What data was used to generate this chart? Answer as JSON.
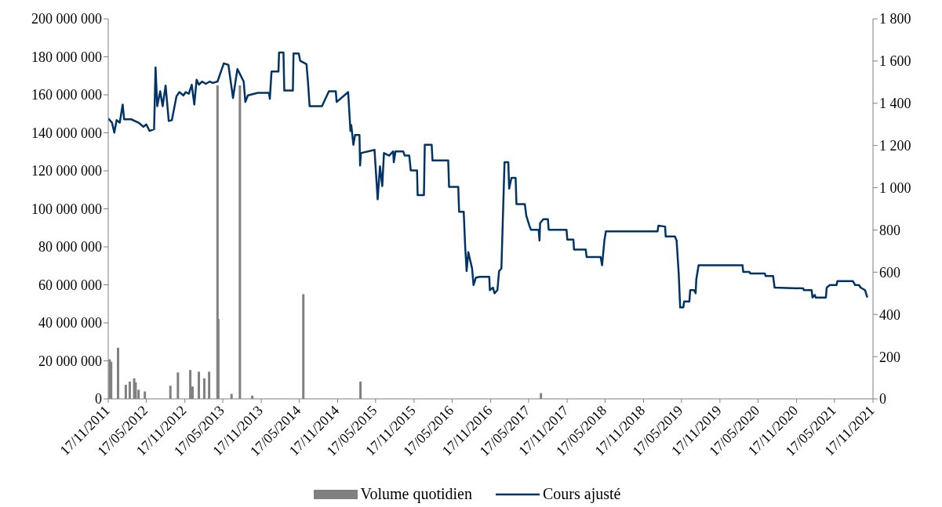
{
  "chart_data": {
    "type": "line",
    "legend": "bottom",
    "xlim": [
      "2011-11-17",
      "2021-11-17"
    ],
    "xticks": [
      {
        "value": "2011-11-17",
        "label": "17/11/2011"
      },
      {
        "value": "2012-05-17",
        "label": "17/05/2012"
      },
      {
        "value": "2012-11-17",
        "label": "17/11/2012"
      },
      {
        "value": "2013-05-17",
        "label": "17/05/2013"
      },
      {
        "value": "2013-11-17",
        "label": "17/11/2013"
      },
      {
        "value": "2014-05-17",
        "label": "17/05/2014"
      },
      {
        "value": "2014-11-17",
        "label": "17/11/2014"
      },
      {
        "value": "2015-05-17",
        "label": "17/05/2015"
      },
      {
        "value": "2015-11-17",
        "label": "17/11/2015"
      },
      {
        "value": "2016-05-17",
        "label": "17/05/2016"
      },
      {
        "value": "2016-11-17",
        "label": "17/11/2016"
      },
      {
        "value": "2017-05-17",
        "label": "17/05/2017"
      },
      {
        "value": "2017-11-17",
        "label": "17/11/2017"
      },
      {
        "value": "2018-05-17",
        "label": "17/05/2018"
      },
      {
        "value": "2018-11-17",
        "label": "17/11/2018"
      },
      {
        "value": "2019-05-17",
        "label": "17/05/2019"
      },
      {
        "value": "2019-11-17",
        "label": "17/11/2019"
      },
      {
        "value": "2020-05-17",
        "label": "17/05/2020"
      },
      {
        "value": "2020-11-17",
        "label": "17/11/2020"
      },
      {
        "value": "2021-05-17",
        "label": "17/05/2021"
      },
      {
        "value": "2021-11-17",
        "label": "17/11/2021"
      }
    ],
    "ylim": [
      0,
      200000000
    ],
    "yticks": [
      0,
      {
        "value": 20000000,
        "label": "20 000 000"
      },
      {
        "value": 40000000,
        "label": "40 000 000"
      },
      {
        "value": 60000000,
        "label": "60 000 000"
      },
      {
        "value": 80000000,
        "label": "80 000 000"
      },
      {
        "value": 100000000,
        "label": "100 000 000"
      },
      {
        "value": 120000000,
        "label": "120 000 000"
      },
      {
        "value": 140000000,
        "label": "140 000 000"
      },
      {
        "value": 160000000,
        "label": "160 000 000"
      },
      {
        "value": 180000000,
        "label": "180 000 000"
      },
      {
        "value": 200000000,
        "label": "200 000 000"
      }
    ],
    "y2lim": [
      0,
      1800
    ],
    "y2ticks": [
      0,
      200,
      400,
      600,
      800,
      {
        "value": 1000,
        "label": "1 000"
      },
      {
        "value": 1200,
        "label": "1 200"
      },
      {
        "value": 1400,
        "label": "1 400"
      },
      {
        "value": 1600,
        "label": "1 600"
      },
      {
        "value": 1800,
        "label": "1 800"
      }
    ],
    "series": [
      {
        "name": "Volume quotidien",
        "type": "bar",
        "color": "#808080",
        "x": [
          "2011-11-24",
          "2011-12-01",
          "2012-01-03",
          "2012-02-09",
          "2012-02-28",
          "2012-03-20",
          "2012-03-27",
          "2012-04-10",
          "2012-05-10",
          "2012-09-09",
          "2012-10-15",
          "2012-12-13",
          "2012-12-24",
          "2013-01-23",
          "2013-02-18",
          "2013-03-13",
          "2013-04-22",
          "2013-04-26",
          "2013-06-28",
          "2013-08-07",
          "2013-10-05",
          "2014-06-06",
          "2015-03-06",
          "2017-07-15"
        ],
        "values": [
          20800000,
          19500000,
          26900000,
          7400000,
          9100000,
          10800000,
          8700000,
          4800000,
          3900000,
          6900000,
          13900000,
          15200000,
          6500000,
          14300000,
          10800000,
          14300000,
          165000000,
          42000000,
          2600000,
          165000000,
          1700000,
          55100000,
          9100000,
          3000000
        ]
      },
      {
        "name": "Cours ajusté",
        "axis": "y2",
        "color": "#003366",
        "marker": "none",
        "line_style": "solid",
        "x": [
          "2011-11-17",
          "2011-12-05",
          "2011-12-16",
          "2011-12-27",
          "2012-01-11",
          "2012-01-25",
          "2012-02-01",
          "2012-03-06",
          "2012-04-10",
          "2012-05-03",
          "2012-05-17",
          "2012-06-01",
          "2012-06-23",
          "2012-06-30",
          "2012-07-08",
          "2012-07-22",
          "2012-08-03",
          "2012-08-17",
          "2012-09-01",
          "2012-09-16",
          "2012-10-08",
          "2012-10-22",
          "2012-11-10",
          "2012-11-21",
          "2012-12-06",
          "2012-12-20",
          "2013-01-01",
          "2013-01-12",
          "2013-01-23",
          "2013-02-07",
          "2013-02-25",
          "2013-03-16",
          "2013-03-31",
          "2013-04-22",
          "2013-05-22",
          "2013-06-13",
          "2013-06-24",
          "2013-07-05",
          "2013-07-26",
          "2013-08-25",
          "2013-09-02",
          "2013-09-14",
          "2013-10-31",
          "2013-12-24",
          "2013-12-28",
          "2014-01-05",
          "2014-02-07",
          "2014-02-10",
          "2014-03-03",
          "2014-03-07",
          "2014-04-17",
          "2014-04-20",
          "2014-05-15",
          "2014-05-22",
          "2014-06-21",
          "2014-06-28",
          "2014-07-06",
          "2014-09-03",
          "2014-10-06",
          "2014-11-08",
          "2014-11-12",
          "2015-01-06",
          "2015-01-17",
          "2015-01-21",
          "2015-01-31",
          "2015-02-08",
          "2015-03-01",
          "2015-03-04",
          "2015-03-08",
          "2015-05-12",
          "2015-05-27",
          "2015-06-07",
          "2015-06-18",
          "2015-06-26",
          "2015-07-21",
          "2015-08-09",
          "2015-08-12",
          "2015-08-20",
          "2015-09-26",
          "2015-10-03",
          "2015-10-25",
          "2015-11-01",
          "2015-12-01",
          "2015-12-04",
          "2016-01-03",
          "2016-01-07",
          "2016-02-09",
          "2016-02-13",
          "2016-04-28",
          "2016-05-02",
          "2016-06-15",
          "2016-06-19",
          "2016-07-11",
          "2016-07-18",
          "2016-07-25",
          "2016-08-02",
          "2016-08-20",
          "2016-08-27",
          "2016-09-07",
          "2016-09-26",
          "2016-11-10",
          "2016-11-13",
          "2016-11-28",
          "2016-12-05",
          "2016-12-19",
          "2016-12-27",
          "2017-01-07",
          "2017-01-22",
          "2017-02-09",
          "2017-02-13",
          "2017-02-24",
          "2017-03-16",
          "2017-03-20",
          "2017-04-29",
          "2017-05-06",
          "2017-05-21",
          "2017-05-28",
          "2017-07-04",
          "2017-07-08",
          "2017-07-11",
          "2017-07-26",
          "2017-08-17",
          "2017-08-21",
          "2017-11-14",
          "2017-11-18",
          "2017-12-17",
          "2017-12-20",
          "2018-02-14",
          "2018-02-18",
          "2018-04-26",
          "2018-05-03",
          "2018-05-14",
          "2018-05-21",
          "2019-01-23",
          "2019-01-27",
          "2019-02-28",
          "2019-03-03",
          "2019-04-16",
          "2019-04-24",
          "2019-05-04",
          "2019-05-11",
          "2019-05-26",
          "2019-05-30",
          "2019-06-24",
          "2019-06-28",
          "2019-07-16",
          "2019-07-24",
          "2019-07-27",
          "2019-08-07",
          "2020-03-04",
          "2020-03-07",
          "2020-04-06",
          "2020-04-10",
          "2020-06-18",
          "2020-06-22",
          "2020-07-28",
          "2020-08-04",
          "2020-12-19",
          "2020-12-22",
          "2021-01-28",
          "2021-02-01",
          "2021-02-12",
          "2021-02-16",
          "2021-04-06",
          "2021-04-10",
          "2021-04-25",
          "2021-05-27",
          "2021-05-31",
          "2021-08-13",
          "2021-08-24",
          "2021-09-11",
          "2021-09-19",
          "2021-10-10",
          "2021-10-21"
        ],
        "values": [
          1328,
          1308,
          1261,
          1320,
          1308,
          1394,
          1324,
          1324,
          1308,
          1289,
          1300,
          1269,
          1277,
          1570,
          1386,
          1457,
          1386,
          1484,
          1316,
          1320,
          1433,
          1453,
          1437,
          1453,
          1445,
          1488,
          1394,
          1511,
          1488,
          1503,
          1492,
          1503,
          1496,
          1503,
          1589,
          1582,
          1503,
          1425,
          1562,
          1503,
          1406,
          1437,
          1449,
          1449,
          1421,
          1550,
          1550,
          1640,
          1640,
          1460,
          1460,
          1636,
          1636,
          1601,
          1585,
          1503,
          1386,
          1386,
          1457,
          1457,
          1406,
          1453,
          1269,
          1296,
          1203,
          1250,
          1250,
          1105,
          1164,
          1179,
          945,
          1101,
          1008,
          1164,
          1152,
          1172,
          1121,
          1172,
          1172,
          1152,
          1152,
          1082,
          1082,
          965,
          965,
          1203,
          1203,
          1129,
          1129,
          1004,
          1004,
          886,
          886,
          722,
          605,
          695,
          617,
          539,
          574,
          578,
          578,
          515,
          527,
          500,
          515,
          605,
          617,
          1121,
          1121,
          996,
          1047,
          1047,
          922,
          922,
          867,
          820,
          801,
          801,
          750,
          832,
          851,
          851,
          801,
          801,
          754,
          754,
          707,
          707,
          672,
          672,
          633,
          750,
          793,
          793,
          820,
          816,
          769,
          769,
          750,
          594,
          433,
          433,
          461,
          461,
          515,
          515,
          500,
          566,
          633,
          633,
          601,
          601,
          594,
          594,
          582,
          582,
          527,
          523,
          515,
          515,
          480,
          492,
          480,
          480,
          527,
          539,
          539,
          558,
          558,
          539,
          539,
          527,
          515,
          480
        ]
      }
    ]
  }
}
